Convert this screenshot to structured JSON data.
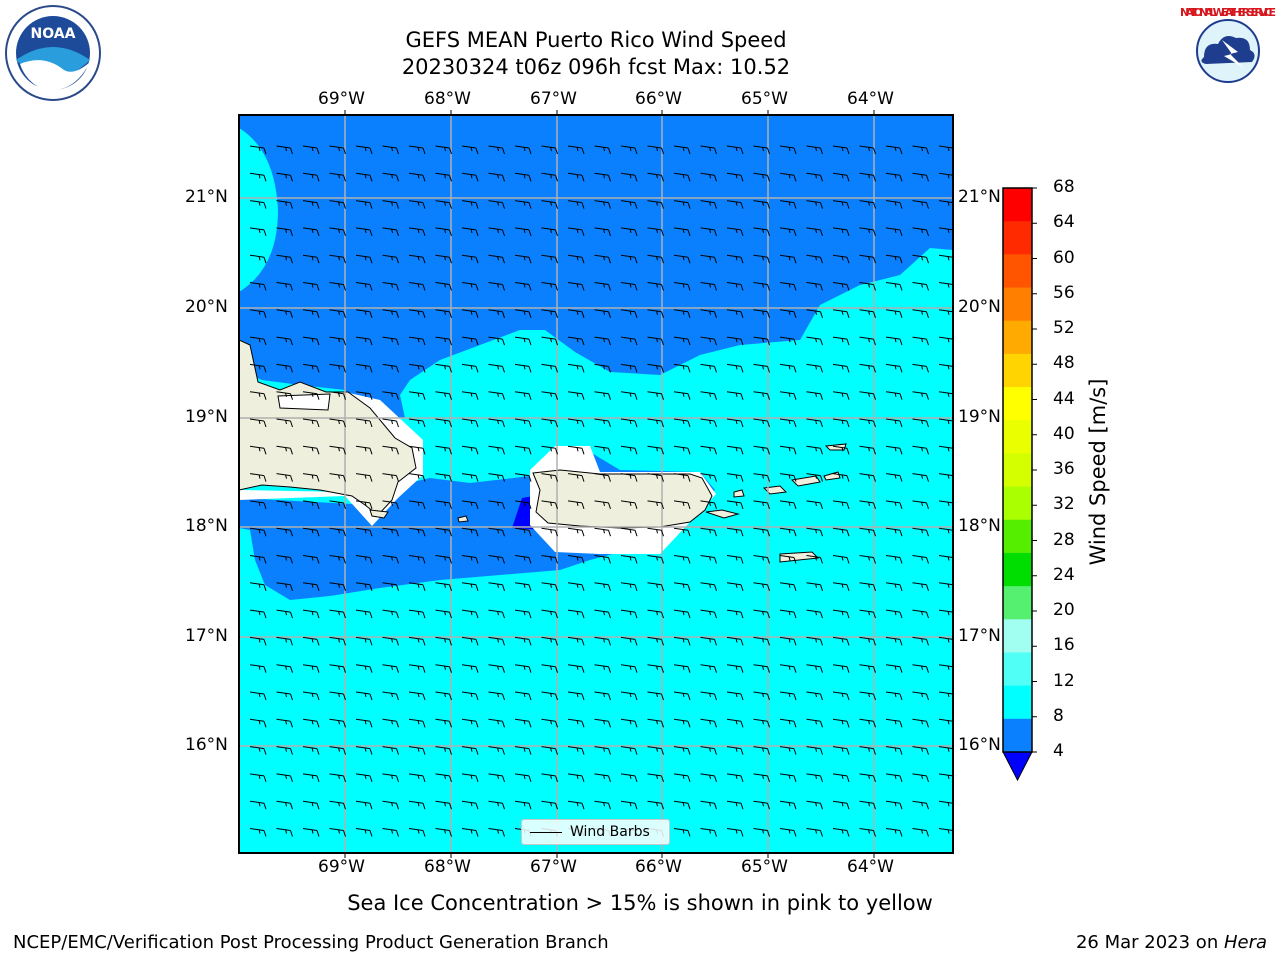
{
  "title": {
    "line1": "GEFS MEAN Puerto Rico Wind Speed",
    "line2": "20230324 t06z 096h fcst   Max: 10.52"
  },
  "logos": {
    "left": {
      "text": "NOAA",
      "icon": "noaa-logo-icon"
    },
    "right": {
      "text": "NATIONAL WEATHER SERVICE",
      "icon": "nws-logo-icon"
    }
  },
  "map": {
    "lon_labels": [
      "69°W",
      "68°W",
      "67°W",
      "66°W",
      "65°W",
      "64°W"
    ],
    "lat_labels": [
      "21°N",
      "20°N",
      "19°N",
      "18°N",
      "17°N",
      "16°N"
    ],
    "legend_label": "Wind Barbs"
  },
  "colorbar": {
    "label": "Wind Speed [m/s]",
    "ticks": [
      "68",
      "64",
      "60",
      "56",
      "52",
      "48",
      "44",
      "40",
      "36",
      "32",
      "28",
      "24",
      "20",
      "16",
      "12",
      "8",
      "4"
    ],
    "colors": [
      "#ff0000",
      "#ff2a00",
      "#ff5500",
      "#ff8000",
      "#ffaa00",
      "#ffd400",
      "#ffff00",
      "#eaff00",
      "#d4ff00",
      "#aaff00",
      "#55ee00",
      "#00dd00",
      "#55f070",
      "#a0fff0",
      "#50fff5",
      "#00ffff",
      "#0a80ff"
    ],
    "under_color": "#0000ff"
  },
  "note": "Sea Ice Concentration > 15% is shown in pink to yellow",
  "footer": {
    "left": "NCEP/EMC/Verification Post Processing Product Generation Branch",
    "right_prefix": "26 Mar 2023 on ",
    "right_host": "Hera"
  }
}
